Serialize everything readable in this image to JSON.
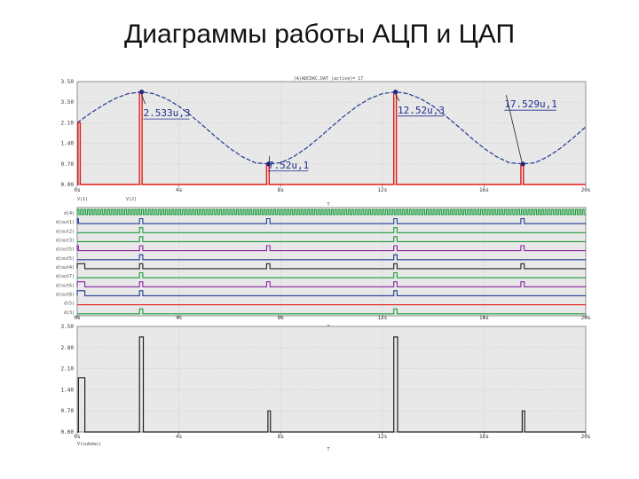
{
  "page_title": "Диаграммы работы АЦП и ЦАП",
  "chart_data": [
    {
      "type": "line",
      "header": "(A)ADCDAC.DAT (active)= 17",
      "xlim": [
        0,
        20
      ],
      "x_ticks": [
        "0s",
        "4s",
        "8s",
        "12s",
        "16s",
        "20s"
      ],
      "y_ticks": [
        "3.50",
        "3.50",
        "2.10",
        "1.40",
        "0.70",
        "0.00"
      ],
      "xlabel": "T",
      "legend_left": "V(1)",
      "legend_right": "V(2)",
      "series": [
        {
          "color": "#1f3a93",
          "dashed": true,
          "x": [
            0,
            0.5,
            1,
            1.5,
            2,
            2.533,
            3,
            3.5,
            4,
            4.5,
            5,
            5.5,
            6,
            6.5,
            7,
            7.52,
            8,
            8.5,
            9,
            9.5,
            10,
            10.5,
            11,
            11.5,
            12,
            12.52,
            13,
            13.5,
            14,
            14.5,
            15,
            15.5,
            16,
            16.5,
            17,
            17.529,
            18,
            18.5,
            19,
            19.5,
            20
          ],
          "y": [
            2.1,
            2.41,
            2.69,
            2.93,
            3.09,
            3.15,
            3.09,
            2.92,
            2.66,
            2.33,
            1.96,
            1.58,
            1.23,
            0.94,
            0.74,
            0.7,
            0.74,
            0.94,
            1.23,
            1.58,
            1.96,
            2.33,
            2.66,
            2.92,
            3.09,
            3.15,
            3.09,
            2.92,
            2.66,
            2.33,
            1.96,
            1.58,
            1.23,
            0.94,
            0.74,
            0.7,
            0.74,
            0.94,
            1.23,
            1.58,
            1.96
          ]
        },
        {
          "color": "#e21b1b",
          "x": [
            0,
            0.03,
            0.03,
            0.12,
            0.12,
            2.45,
            2.45,
            2.55,
            2.55,
            7.45,
            7.45,
            7.55,
            7.55,
            12.45,
            12.45,
            12.55,
            12.55,
            17.45,
            17.45,
            17.55,
            17.55,
            20
          ],
          "y": [
            0,
            0,
            2.1,
            2.1,
            0,
            0,
            3.15,
            3.15,
            0,
            0,
            0.7,
            0.7,
            0,
            0,
            3.15,
            3.15,
            0,
            0,
            0.7,
            0.7,
            0,
            0
          ]
        }
      ],
      "annotations": [
        {
          "x": 2.533,
          "y": 3.15,
          "text": "2.533u,3",
          "lx": 2.6,
          "ly": 2.32
        },
        {
          "x": 7.52,
          "y": 0.7,
          "text": "7.52u,1",
          "lx": 7.5,
          "ly": 0.55
        },
        {
          "x": 12.52,
          "y": 3.15,
          "text": "12.52u,3",
          "lx": 12.6,
          "ly": 2.42
        },
        {
          "x": 17.529,
          "y": 0.7,
          "text": "17.529u,1",
          "lx": 16.8,
          "ly": 2.62
        }
      ]
    },
    {
      "type": "digital",
      "xlim": [
        0,
        20
      ],
      "x_ticks": [
        "0s",
        "4s",
        "8s",
        "12s",
        "16s",
        "20s"
      ],
      "xlabel": "T",
      "rows": [
        {
          "label": "d(4)",
          "color": "#1a9b3a",
          "clock": true,
          "pulses": []
        },
        {
          "label": "d(out1)",
          "color": "#1f3a93",
          "pulses": [
            [
              0,
              0.05
            ],
            [
              2.45,
              2.58
            ],
            [
              7.45,
              7.58
            ],
            [
              12.45,
              12.58
            ],
            [
              17.45,
              17.58
            ]
          ]
        },
        {
          "label": "d(out2)",
          "color": "#1a9b3a",
          "pulses": [
            [
              2.45,
              2.58
            ],
            [
              12.45,
              12.58
            ]
          ]
        },
        {
          "label": "d(out3)",
          "color": "#1a9b3a",
          "pulses": [
            [
              2.45,
              2.58
            ],
            [
              12.45,
              12.58
            ]
          ]
        },
        {
          "label": "d(out5)",
          "color": "#8a1fa0",
          "pulses": [
            [
              0,
              0.05
            ],
            [
              2.45,
              2.58
            ],
            [
              7.45,
              7.58
            ],
            [
              12.45,
              12.58
            ],
            [
              17.45,
              17.58
            ]
          ]
        },
        {
          "label": "d(out5)",
          "color": "#1f3a93",
          "pulses": [
            [
              2.45,
              2.58
            ],
            [
              12.45,
              12.58
            ]
          ]
        },
        {
          "label": "d(out4)",
          "color": "#222222",
          "pulses": [
            [
              0,
              0.3
            ],
            [
              2.45,
              2.58
            ],
            [
              7.45,
              7.58
            ],
            [
              12.45,
              12.58
            ],
            [
              17.45,
              17.58
            ]
          ]
        },
        {
          "label": "d(out7)",
          "color": "#1a9b3a",
          "pulses": [
            [
              2.45,
              2.58
            ],
            [
              12.45,
              12.58
            ]
          ]
        },
        {
          "label": "d(out6)",
          "color": "#8a1fa0",
          "pulses": [
            [
              0,
              0.3
            ],
            [
              2.45,
              2.58
            ],
            [
              7.45,
              7.58
            ],
            [
              12.45,
              12.58
            ],
            [
              17.45,
              17.58
            ]
          ]
        },
        {
          "label": "d(out8)",
          "color": "#1f3a93",
          "pulses": [
            [
              0,
              0.3
            ],
            [
              2.45,
              2.58
            ],
            [
              12.45,
              12.58
            ]
          ]
        },
        {
          "label": "d(5)",
          "color": "#e21b1b",
          "pulses": []
        },
        {
          "label": "d(3)",
          "color": "#1a9b3a",
          "pulses": [
            [
              2.45,
              2.58
            ],
            [
              12.45,
              12.58
            ]
          ]
        }
      ]
    },
    {
      "type": "line",
      "xlim": [
        0,
        20
      ],
      "ylim": [
        0,
        3.5
      ],
      "x_ticks": [
        "0s",
        "4s",
        "8s",
        "12s",
        "16s",
        "20s"
      ],
      "y_ticks": [
        "3.50",
        "2.80",
        "2.10",
        "1.40",
        "0.70",
        "0.00"
      ],
      "xlabel": "T",
      "legend_left": "V(subdac)",
      "series": [
        {
          "color": "#222222",
          "x": [
            0,
            0.05,
            0.05,
            0.3,
            0.3,
            2.45,
            2.45,
            2.6,
            2.6,
            7.5,
            7.5,
            7.6,
            7.6,
            12.45,
            12.45,
            12.6,
            12.6,
            17.5,
            17.5,
            17.6,
            17.6,
            20
          ],
          "y": [
            0,
            0,
            1.8,
            1.8,
            0,
            0,
            3.15,
            3.15,
            0,
            0,
            0.7,
            0.7,
            0,
            0,
            3.15,
            3.15,
            0,
            0,
            0.7,
            0.7,
            0,
            0
          ]
        }
      ]
    }
  ]
}
